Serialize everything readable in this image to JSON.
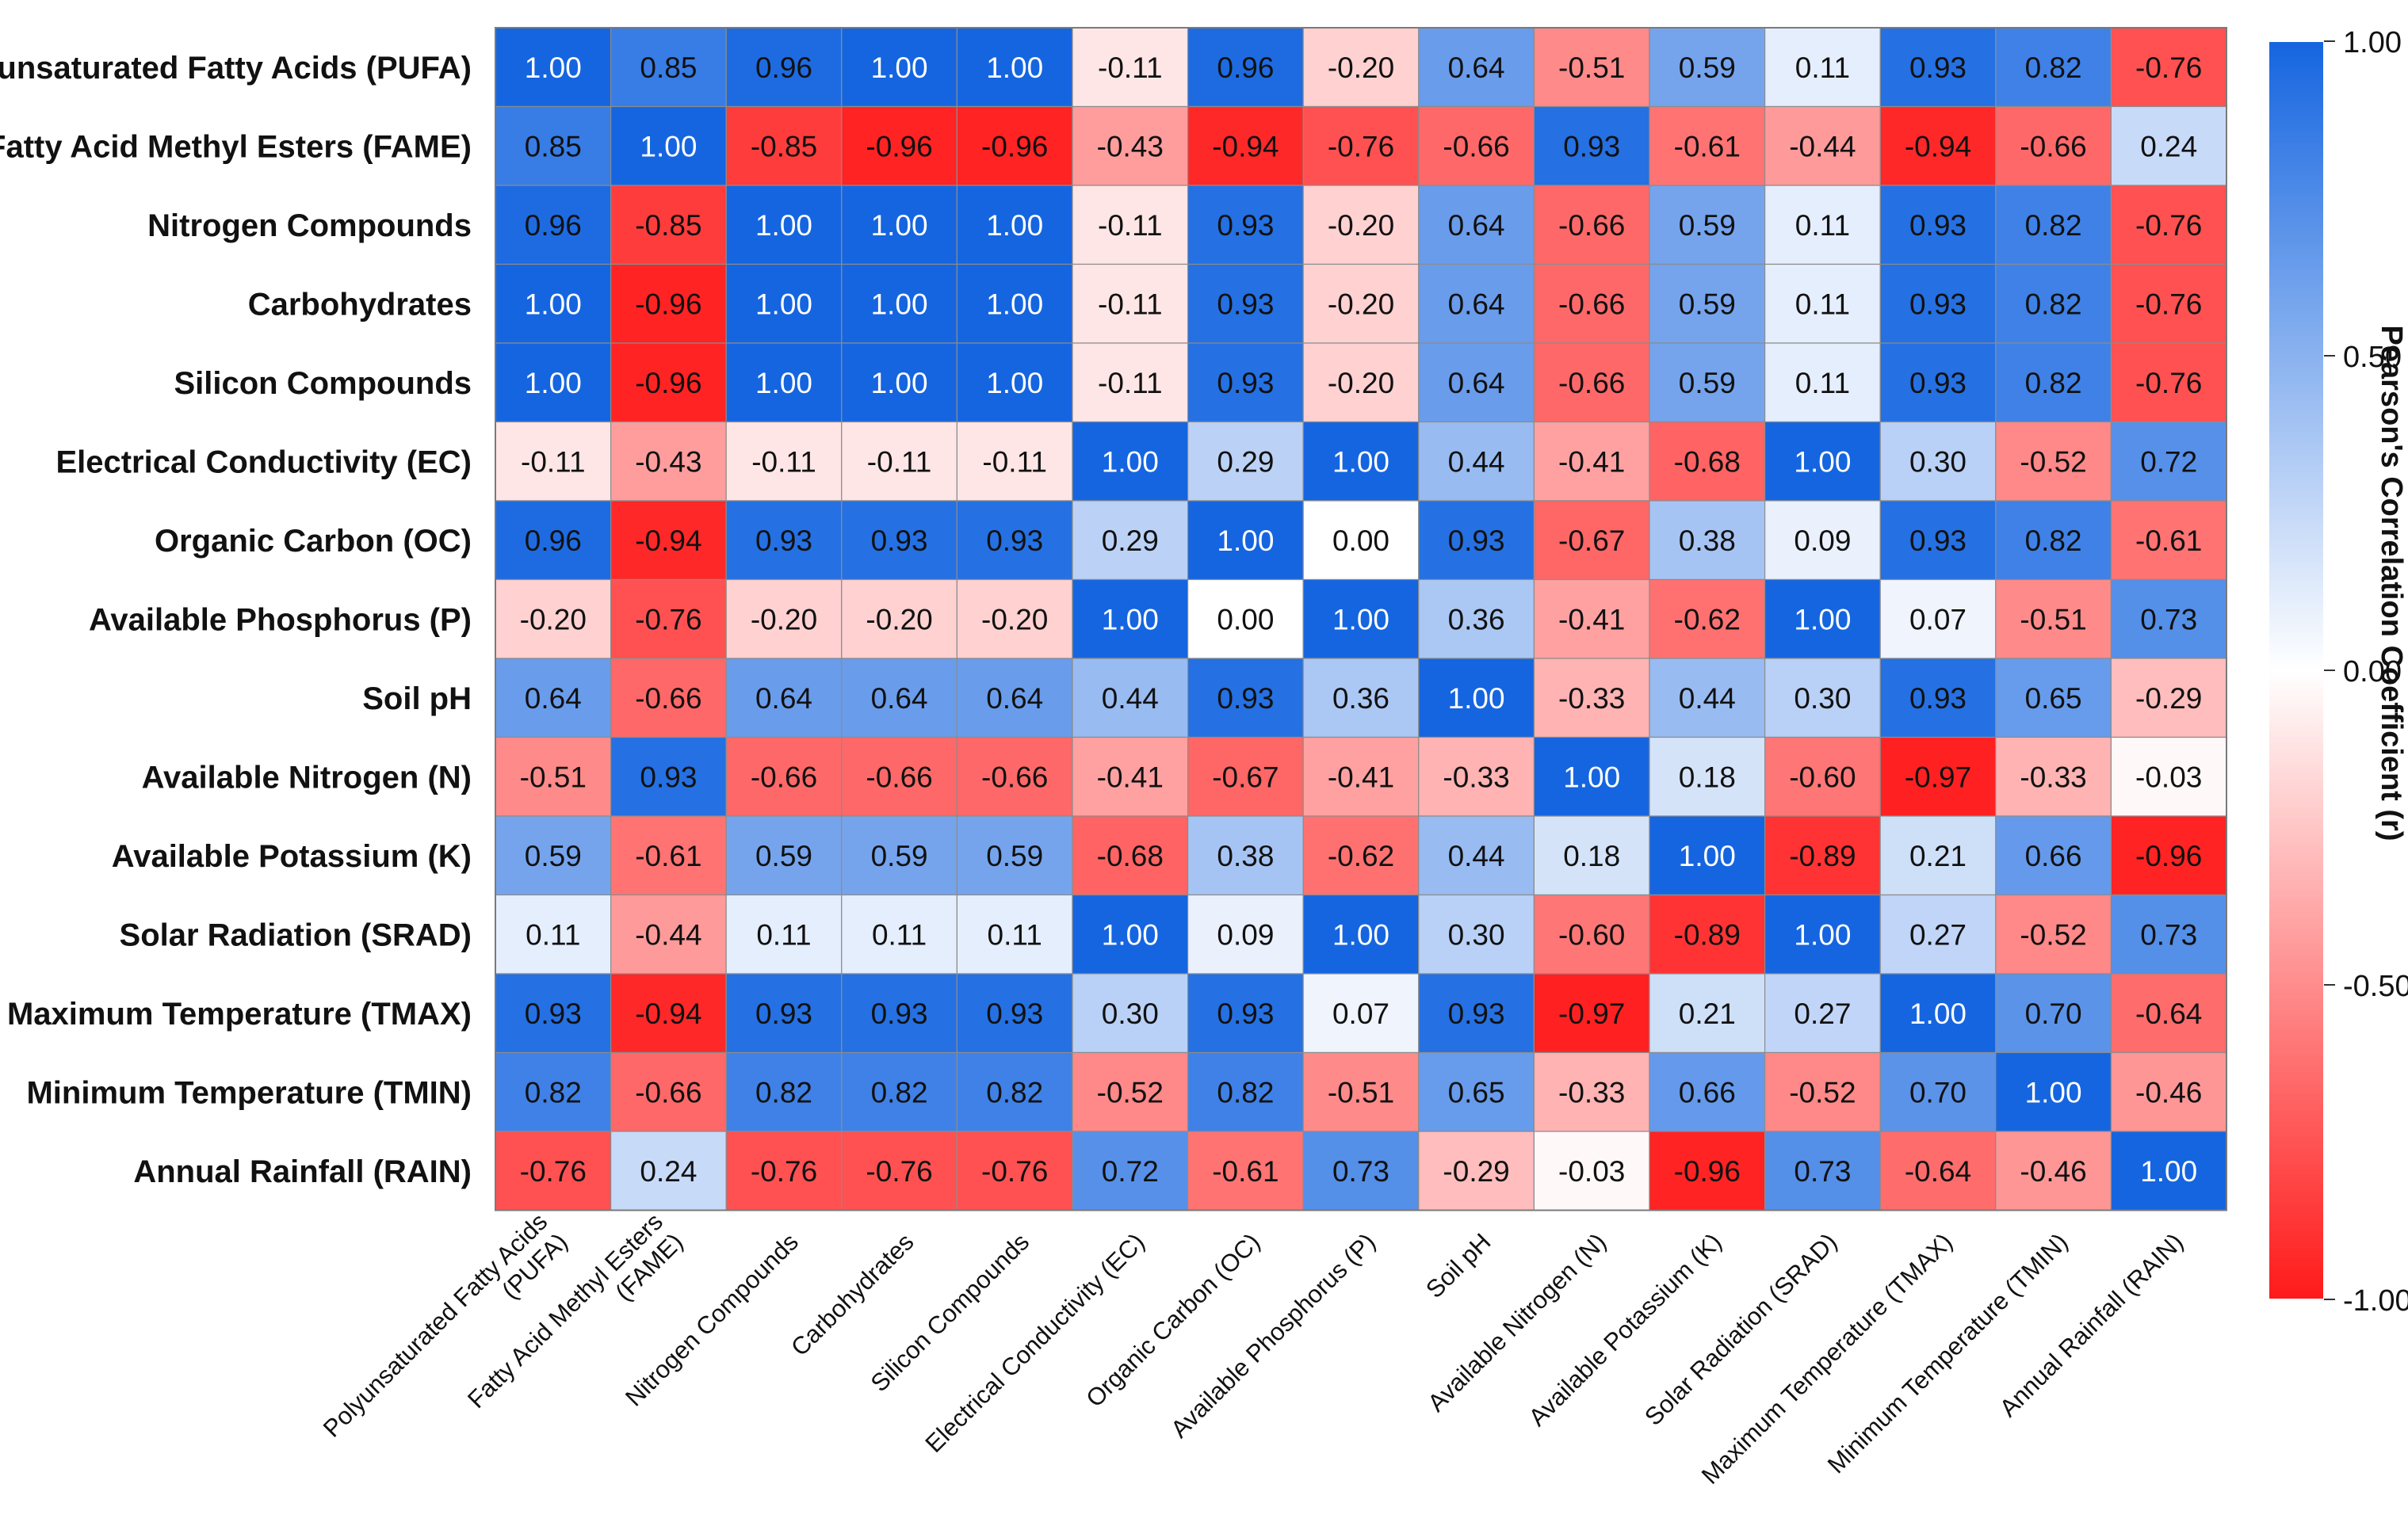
{
  "chart_data": {
    "type": "heatmap",
    "title": "",
    "row_labels": [
      "Polyunsaturated Fatty Acids (PUFA)",
      "Fatty Acid Methyl Esters (FAME)",
      "Nitrogen Compounds",
      "Carbohydrates",
      "Silicon Compounds",
      "Electrical Conductivity (EC)",
      "Organic Carbon (OC)",
      "Available Phosphorus (P)",
      "Soil pH",
      "Available Nitrogen (N)",
      "Available Potassium (K)",
      "Solar Radiation (SRAD)",
      "Maximum Temperature (TMAX)",
      "Minimum Temperature (TMIN)",
      "Annual Rainfall (RAIN)"
    ],
    "col_labels": [
      "Polyunsaturated Fatty Acids\n(PUFA)",
      "Fatty Acid Methyl Esters\n(FAME)",
      "Nitrogen Compounds",
      "Carbohydrates",
      "Silicon Compounds",
      "Electrical Conductivity (EC)",
      "Organic Carbon (OC)",
      "Available Phosphorus (P)",
      "Soil pH",
      "Available Nitrogen (N)",
      "Available Potassium (K)",
      "Solar Radiation (SRAD)",
      "Maximum Temperature (TMAX)",
      "Minimum Temperature (TMIN)",
      "Annual Rainfall (RAIN)"
    ],
    "values": [
      [
        1.0,
        0.85,
        0.96,
        1.0,
        1.0,
        -0.11,
        0.96,
        -0.2,
        0.64,
        -0.51,
        0.59,
        0.11,
        0.93,
        0.82,
        -0.76
      ],
      [
        0.85,
        1.0,
        -0.85,
        -0.96,
        -0.96,
        -0.43,
        -0.94,
        -0.76,
        -0.66,
        0.93,
        -0.61,
        -0.44,
        -0.94,
        -0.66,
        0.24
      ],
      [
        0.96,
        -0.85,
        1.0,
        1.0,
        1.0,
        -0.11,
        0.93,
        -0.2,
        0.64,
        -0.66,
        0.59,
        0.11,
        0.93,
        0.82,
        -0.76
      ],
      [
        1.0,
        -0.96,
        1.0,
        1.0,
        1.0,
        -0.11,
        0.93,
        -0.2,
        0.64,
        -0.66,
        0.59,
        0.11,
        0.93,
        0.82,
        -0.76
      ],
      [
        1.0,
        -0.96,
        1.0,
        1.0,
        1.0,
        -0.11,
        0.93,
        -0.2,
        0.64,
        -0.66,
        0.59,
        0.11,
        0.93,
        0.82,
        -0.76
      ],
      [
        -0.11,
        -0.43,
        -0.11,
        -0.11,
        -0.11,
        1.0,
        0.29,
        1.0,
        0.44,
        -0.41,
        -0.68,
        1.0,
        0.3,
        -0.52,
        0.72
      ],
      [
        0.96,
        -0.94,
        0.93,
        0.93,
        0.93,
        0.29,
        1.0,
        0.0,
        0.93,
        -0.67,
        0.38,
        0.09,
        0.93,
        0.82,
        -0.61
      ],
      [
        -0.2,
        -0.76,
        -0.2,
        -0.2,
        -0.2,
        1.0,
        0.0,
        1.0,
        0.36,
        -0.41,
        -0.62,
        1.0,
        0.07,
        -0.51,
        0.73
      ],
      [
        0.64,
        -0.66,
        0.64,
        0.64,
        0.64,
        0.44,
        0.93,
        0.36,
        1.0,
        -0.33,
        0.44,
        0.3,
        0.93,
        0.65,
        -0.29
      ],
      [
        -0.51,
        0.93,
        -0.66,
        -0.66,
        -0.66,
        -0.41,
        -0.67,
        -0.41,
        -0.33,
        1.0,
        0.18,
        -0.6,
        -0.97,
        -0.33,
        -0.03
      ],
      [
        0.59,
        -0.61,
        0.59,
        0.59,
        0.59,
        -0.68,
        0.38,
        -0.62,
        0.44,
        0.18,
        1.0,
        -0.89,
        0.21,
        0.66,
        -0.96
      ],
      [
        0.11,
        -0.44,
        0.11,
        0.11,
        0.11,
        1.0,
        0.09,
        1.0,
        0.3,
        -0.6,
        -0.89,
        1.0,
        0.27,
        -0.52,
        0.73
      ],
      [
        0.93,
        -0.94,
        0.93,
        0.93,
        0.93,
        0.3,
        0.93,
        0.07,
        0.93,
        -0.97,
        0.21,
        0.27,
        1.0,
        0.7,
        -0.64
      ],
      [
        0.82,
        -0.66,
        0.82,
        0.82,
        0.82,
        -0.52,
        0.82,
        -0.51,
        0.65,
        -0.33,
        0.66,
        -0.52,
        0.7,
        1.0,
        -0.46
      ],
      [
        -0.76,
        0.24,
        -0.76,
        -0.76,
        -0.76,
        0.72,
        -0.61,
        0.73,
        -0.29,
        -0.03,
        -0.96,
        0.73,
        -0.64,
        -0.46,
        1.0
      ]
    ],
    "value_format": "2 decimals",
    "colorbar": {
      "label": "Pearson's Correlation Coefficient (r)",
      "range": [
        -1.0,
        1.0
      ],
      "ticks": [
        1.0,
        0.5,
        0.0,
        -0.5,
        -1.0
      ],
      "tick_labels": [
        "1.00",
        "0.50",
        "0.00",
        "-0.50",
        "-1.00"
      ],
      "colors": {
        "low": "#ff1a1a",
        "mid": "#ffffff",
        "high": "#1565e0"
      }
    },
    "grid": true
  }
}
